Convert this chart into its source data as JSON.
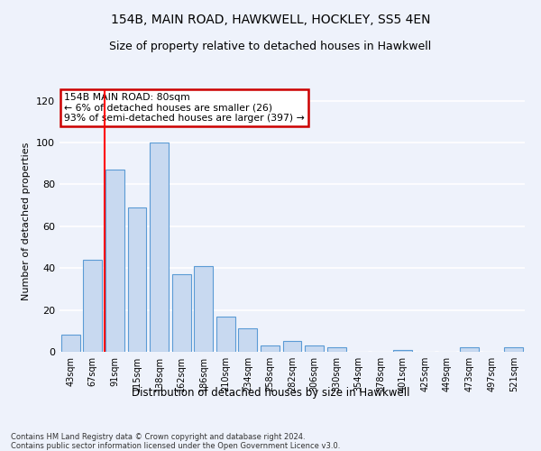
{
  "title1": "154B, MAIN ROAD, HAWKWELL, HOCKLEY, SS5 4EN",
  "title2": "Size of property relative to detached houses in Hawkwell",
  "xlabel": "Distribution of detached houses by size in Hawkwell",
  "ylabel": "Number of detached properties",
  "categories": [
    "43sqm",
    "67sqm",
    "91sqm",
    "115sqm",
    "138sqm",
    "162sqm",
    "186sqm",
    "210sqm",
    "234sqm",
    "258sqm",
    "282sqm",
    "306sqm",
    "330sqm",
    "354sqm",
    "378sqm",
    "401sqm",
    "425sqm",
    "449sqm",
    "473sqm",
    "497sqm",
    "521sqm"
  ],
  "values": [
    8,
    44,
    87,
    69,
    100,
    37,
    41,
    17,
    11,
    3,
    5,
    3,
    2,
    0,
    0,
    1,
    0,
    0,
    2,
    0,
    2
  ],
  "bar_color": "#c8d9f0",
  "bar_edge_color": "#5b9bd5",
  "background_color": "#eef2fb",
  "grid_color": "#ffffff",
  "annotation_text": "154B MAIN ROAD: 80sqm\n← 6% of detached houses are smaller (26)\n93% of semi-detached houses are larger (397) →",
  "annotation_box_color": "#ffffff",
  "annotation_box_edge_color": "#cc0000",
  "footnote": "Contains HM Land Registry data © Crown copyright and database right 2024.\nContains public sector information licensed under the Open Government Licence v3.0.",
  "ylim": [
    0,
    125
  ],
  "yticks": [
    0,
    20,
    40,
    60,
    80,
    100,
    120
  ],
  "red_line_x": 1.5
}
